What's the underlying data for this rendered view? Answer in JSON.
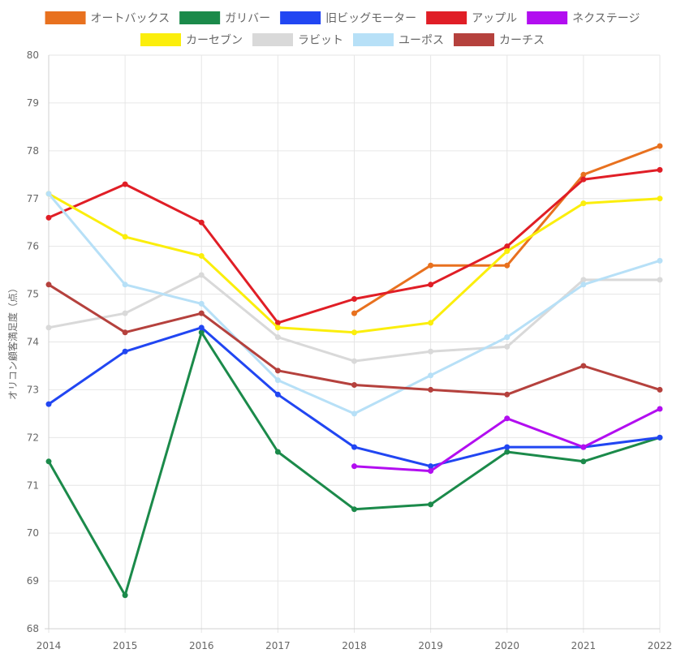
{
  "chart_data": {
    "type": "line",
    "title": "",
    "xlabel": "",
    "ylabel": "オリコン顧客満足度（点）",
    "ylim": [
      68,
      80
    ],
    "y_ticks": [
      "68",
      "69",
      "70",
      "71",
      "72",
      "73",
      "74",
      "75",
      "76",
      "77",
      "78",
      "79",
      "80"
    ],
    "categories": [
      "2014",
      "2015",
      "2016",
      "2017",
      "2018",
      "2019",
      "2020",
      "2021",
      "2022"
    ],
    "grid": true,
    "legend_position": "top",
    "series": [
      {
        "name": "オートバックス",
        "color": "#e8711f",
        "values": [
          null,
          null,
          null,
          null,
          74.6,
          75.6,
          75.6,
          77.5,
          78.1
        ]
      },
      {
        "name": "ガリバー",
        "color": "#1b8a4a",
        "values": [
          71.5,
          68.7,
          74.2,
          71.7,
          70.5,
          70.6,
          71.7,
          71.5,
          72.0
        ]
      },
      {
        "name": "旧ビッグモーター",
        "color": "#2146f2",
        "values": [
          72.7,
          73.8,
          74.3,
          72.9,
          71.8,
          71.4,
          71.8,
          71.8,
          72.0
        ]
      },
      {
        "name": "アップル",
        "color": "#e01e26",
        "values": [
          76.6,
          77.3,
          76.5,
          74.4,
          74.9,
          75.2,
          76.0,
          77.4,
          77.6
        ]
      },
      {
        "name": "ネクステージ",
        "color": "#b20ef0",
        "values": [
          null,
          null,
          null,
          null,
          71.4,
          71.3,
          72.4,
          71.8,
          72.6
        ]
      },
      {
        "name": "カーセブン",
        "color": "#fbee0c",
        "values": [
          77.1,
          76.2,
          75.8,
          74.3,
          74.2,
          74.4,
          75.9,
          76.9,
          77.0
        ]
      },
      {
        "name": "ラビット",
        "color": "#d9d9d9",
        "values": [
          74.3,
          74.6,
          75.4,
          74.1,
          73.6,
          73.8,
          73.9,
          75.3,
          75.3
        ]
      },
      {
        "name": "ユーポス",
        "color": "#b7e0f7",
        "values": [
          77.1,
          75.2,
          74.8,
          73.2,
          72.5,
          73.3,
          74.1,
          75.2,
          75.7
        ]
      },
      {
        "name": "カーチス",
        "color": "#b5413d",
        "values": [
          75.2,
          74.2,
          74.6,
          73.4,
          73.1,
          73.0,
          72.9,
          73.5,
          73.0
        ]
      }
    ]
  }
}
